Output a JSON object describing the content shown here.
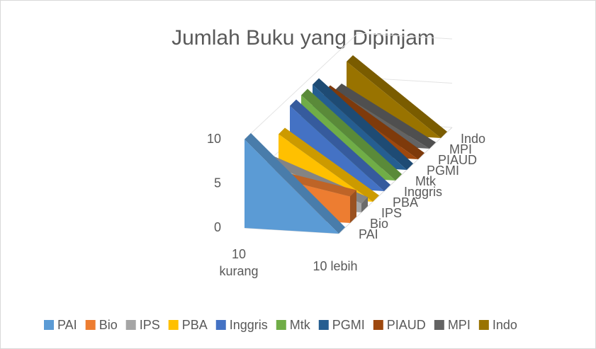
{
  "chart_data": {
    "type": "area3d",
    "title": "Jumlah Buku yang Dipinjam",
    "categories": [
      "10 kurang",
      "10 lebih"
    ],
    "ylim": [
      0,
      10
    ],
    "yticks": [
      0,
      5,
      10
    ],
    "grid": true,
    "legend": "bottom",
    "series": [
      {
        "name": "PAI",
        "color": "#5b9bd5",
        "values": [
          10,
          0
        ]
      },
      {
        "name": "Bio",
        "color": "#ed7d31",
        "values": [
          5,
          3
        ]
      },
      {
        "name": "IPS",
        "color": "#a5a5a5",
        "values": [
          5,
          1
        ]
      },
      {
        "name": "PBA",
        "color": "#ffc000",
        "values": [
          7,
          0
        ]
      },
      {
        "name": "Inggris",
        "color": "#4472c4",
        "values": [
          9,
          0
        ]
      },
      {
        "name": "Mtk",
        "color": "#70ad47",
        "values": [
          9,
          0
        ]
      },
      {
        "name": "PGMI",
        "color": "#255e91",
        "values": [
          9,
          0
        ]
      },
      {
        "name": "PIAUD",
        "color": "#9e480e",
        "values": [
          7,
          0
        ]
      },
      {
        "name": "MPI",
        "color": "#636363",
        "values": [
          6,
          0
        ]
      },
      {
        "name": "Indo",
        "color": "#997300",
        "values": [
          8,
          0
        ]
      }
    ]
  }
}
